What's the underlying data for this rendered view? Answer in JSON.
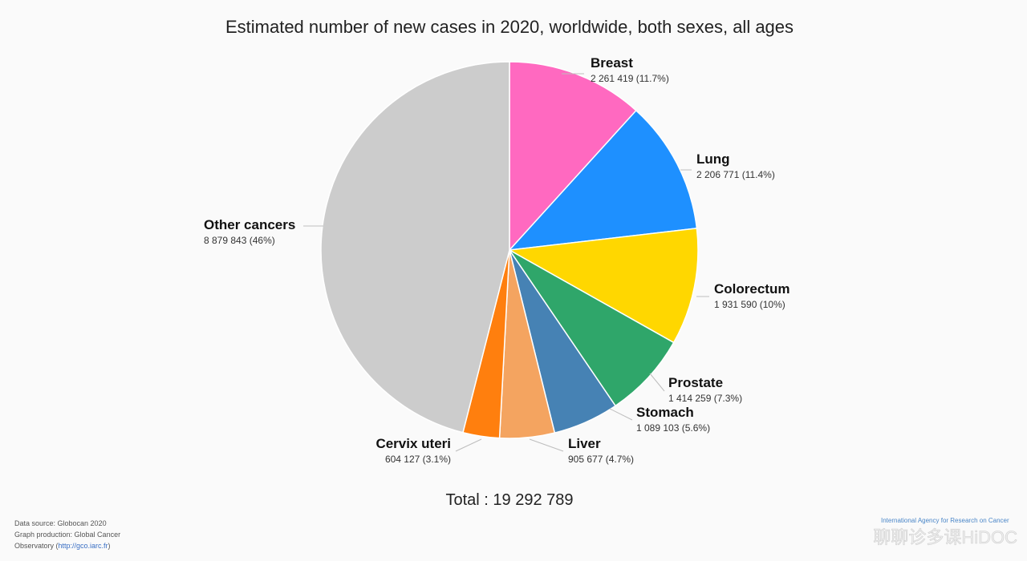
{
  "chart_data": {
    "type": "pie",
    "title": "Estimated number of new cases in 2020, worldwide, both sexes, all ages",
    "total_label": "Total : 19 292 789",
    "slices": [
      {
        "name": "Breast",
        "value": 2261419,
        "value_label": "2 261 419 (11.7%)",
        "color": "#ff69c0"
      },
      {
        "name": "Lung",
        "value": 2206771,
        "value_label": "2 206 771 (11.4%)",
        "color": "#1e90ff"
      },
      {
        "name": "Colorectum",
        "value": 1931590,
        "value_label": "1 931 590 (10%)",
        "color": "#ffd700"
      },
      {
        "name": "Prostate",
        "value": 1414259,
        "value_label": "1 414 259 (7.3%)",
        "color": "#2fa66a"
      },
      {
        "name": "Stomach",
        "value": 1089103,
        "value_label": "1 089 103 (5.6%)",
        "color": "#4682b4"
      },
      {
        "name": "Liver",
        "value": 905677,
        "value_label": "905 677 (4.7%)",
        "color": "#f4a460"
      },
      {
        "name": "Cervix uteri",
        "value": 604127,
        "value_label": "604 127 (3.1%)",
        "color": "#ff7f0e"
      },
      {
        "name": "Other cancers",
        "value": 8879843,
        "value_label": "8 879 843 (46%)",
        "color": "#cccccc"
      }
    ],
    "start_angle": "12 o'clock",
    "direction": "clockwise"
  },
  "footer": {
    "line1": "Data source: Globocan 2020",
    "line2": "Graph production: Global Cancer",
    "line3_prefix": "Observatory (",
    "line3_link": "http://gco.iarc.fr",
    "line3_suffix": ")"
  },
  "branding": {
    "caption": "International Agency for Research on Cancer",
    "watermark": "聊聊诊多课HiDOC"
  }
}
